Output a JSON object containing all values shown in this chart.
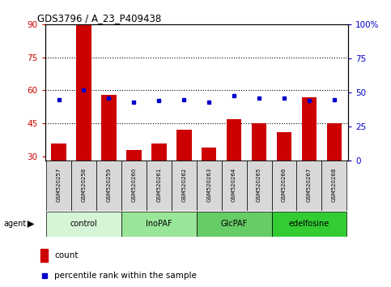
{
  "title": "GDS3796 / A_23_P409438",
  "categories": [
    "GSM520257",
    "GSM520258",
    "GSM520259",
    "GSM520260",
    "GSM520261",
    "GSM520262",
    "GSM520263",
    "GSM520264",
    "GSM520265",
    "GSM520266",
    "GSM520267",
    "GSM520268"
  ],
  "count_values": [
    36,
    90,
    58,
    33,
    36,
    42,
    34,
    47,
    45,
    41,
    57,
    45
  ],
  "percentile_values": [
    45,
    52,
    46,
    43,
    44,
    45,
    43,
    48,
    46,
    46,
    44,
    45
  ],
  "bar_color": "#cc0000",
  "dot_color": "#0000cc",
  "ylim_left": [
    28,
    90
  ],
  "ylim_right": [
    0,
    100
  ],
  "yticks_left": [
    30,
    45,
    60,
    75,
    90
  ],
  "yticks_right": [
    0,
    25,
    50,
    75,
    100
  ],
  "ytick_labels_left": [
    "30",
    "45",
    "60",
    "75",
    "90"
  ],
  "ytick_labels_right": [
    "0",
    "25",
    "50",
    "75",
    "100%"
  ],
  "groups": [
    {
      "label": "control",
      "start": 0,
      "end": 3,
      "color": "#d6f5d6"
    },
    {
      "label": "InoPAF",
      "start": 3,
      "end": 6,
      "color": "#99e699"
    },
    {
      "label": "GlcPAF",
      "start": 6,
      "end": 9,
      "color": "#66cc66"
    },
    {
      "label": "edelfosine",
      "start": 9,
      "end": 12,
      "color": "#33cc33"
    }
  ],
  "agent_label": "agent",
  "legend_count_label": "count",
  "legend_pct_label": "percentile rank within the sample",
  "bg_color": "#ffffff"
}
